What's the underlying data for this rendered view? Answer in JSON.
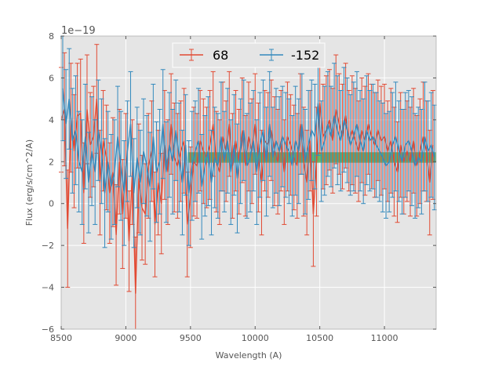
{
  "chart_data": {
    "type": "line",
    "style": "errorbar",
    "title": "",
    "xlabel": "Wavelength (A)",
    "ylabel": "Flux (erg/s/cm^2/A)",
    "y_offset_label": "1e−19",
    "xlim": [
      8500,
      11400
    ],
    "ylim": [
      -6,
      8
    ],
    "y_scale": 1e-19,
    "xticks": [
      8500,
      9000,
      9500,
      10000,
      10500,
      11000
    ],
    "xtick_labels": [
      "8500",
      "9000",
      "9500",
      "10000",
      "10500",
      "11000"
    ],
    "yticks": [
      -6,
      -4,
      -2,
      0,
      2,
      4,
      6,
      8
    ],
    "ytick_labels": [
      "−6",
      "−4",
      "−2",
      "0",
      "2",
      "4",
      "6",
      "8"
    ],
    "grid": true,
    "legend_position": "top-center",
    "legend": [
      "68",
      "-152"
    ],
    "band": {
      "x_start": 9480,
      "x_end": 11400,
      "y_low": 1.95,
      "y_high": 2.45,
      "color": "#2ca02c"
    },
    "series": [
      {
        "name": "68",
        "color": "#e24a33",
        "x": [
          8500,
          8525,
          8550,
          8575,
          8600,
          8625,
          8650,
          8675,
          8700,
          8725,
          8750,
          8775,
          8800,
          8825,
          8850,
          8875,
          8900,
          8925,
          8950,
          8975,
          9000,
          9025,
          9050,
          9075,
          9100,
          9125,
          9150,
          9175,
          9200,
          9225,
          9250,
          9275,
          9300,
          9325,
          9350,
          9375,
          9400,
          9425,
          9450,
          9475,
          9500,
          9525,
          9550,
          9575,
          9600,
          9625,
          9650,
          9675,
          9700,
          9725,
          9750,
          9775,
          9800,
          9825,
          9850,
          9875,
          9900,
          9925,
          9950,
          9975,
          10000,
          10025,
          10050,
          10075,
          10100,
          10125,
          10150,
          10175,
          10200,
          10225,
          10250,
          10275,
          10300,
          10325,
          10350,
          10375,
          10400,
          10425,
          10450,
          10475,
          10500,
          10525,
          10550,
          10575,
          10600,
          10625,
          10650,
          10675,
          10700,
          10725,
          10750,
          10775,
          10800,
          10825,
          10850,
          10875,
          10900,
          10925,
          10950,
          10975,
          11000,
          11025,
          11050,
          11075,
          11100,
          11125,
          11150,
          11175,
          11200,
          11225,
          11250,
          11275,
          11300,
          11325,
          11350,
          11375
        ],
        "y": [
          4.0,
          4.5,
          -1.2,
          4.1,
          2.5,
          4.2,
          4.3,
          0.5,
          4.5,
          2.8,
          3.2,
          5.0,
          1.0,
          3.0,
          2.2,
          0.5,
          1.5,
          -1.5,
          2.0,
          -0.5,
          1.8,
          -1.8,
          1.5,
          -4.3,
          1.2,
          -0.2,
          -0.5,
          1.8,
          2.5,
          -1.0,
          1.0,
          0.0,
          2.8,
          1.5,
          3.8,
          2.2,
          1.8,
          2.5,
          3.0,
          -1.0,
          0.3,
          2.0,
          1.8,
          3.0,
          2.5,
          2.2,
          2.8,
          3.8,
          2.0,
          1.5,
          3.2,
          2.5,
          3.8,
          1.8,
          3.0,
          2.0,
          3.5,
          1.8,
          3.2,
          2.5,
          3.8,
          2.2,
          1.0,
          3.0,
          2.8,
          3.5,
          2.5,
          2.0,
          3.0,
          1.5,
          3.2,
          2.8,
          2.2,
          1.8,
          3.8,
          2.0,
          1.0,
          3.0,
          -0.5,
          2.0,
          4.8,
          3.2,
          3.5,
          4.0,
          3.0,
          4.5,
          3.8,
          3.2,
          4.2,
          3.0,
          3.5,
          3.0,
          2.5,
          3.5,
          3.0,
          3.8,
          3.2,
          2.8,
          3.5,
          3.0,
          3.2,
          2.5,
          3.0,
          2.0,
          1.5,
          2.8,
          2.0,
          2.5,
          2.0,
          3.0,
          1.8,
          2.5,
          3.2,
          2.5,
          1.0,
          2.8
        ],
        "err": [
          2.5,
          2.7,
          2.8,
          2.6,
          2.7,
          2.5,
          2.6,
          2.4,
          2.6,
          2.5,
          2.4,
          2.6,
          2.5,
          2.4,
          2.5,
          2.4,
          2.6,
          2.4,
          2.5,
          2.6,
          2.5,
          2.4,
          2.5,
          2.7,
          2.6,
          2.5,
          2.4,
          2.5,
          2.4,
          2.5,
          2.5,
          2.4,
          2.6,
          2.5,
          2.4,
          2.6,
          2.5,
          2.4,
          2.5,
          2.5,
          2.4,
          2.6,
          2.5,
          2.4,
          2.5,
          2.4,
          2.6,
          2.5,
          2.4,
          2.5,
          2.6,
          2.4,
          2.5,
          2.5,
          2.4,
          2.5,
          2.5,
          2.4,
          2.6,
          2.5,
          2.4,
          2.6,
          2.5,
          2.4,
          2.5,
          2.4,
          2.6,
          2.5,
          2.4,
          2.5,
          2.6,
          2.4,
          2.5,
          2.5,
          2.4,
          2.6,
          2.5,
          2.4,
          2.5,
          2.6,
          2.4,
          2.5,
          2.6,
          2.4,
          2.5,
          2.6,
          2.4,
          2.5,
          2.5,
          2.4,
          2.6,
          2.5,
          2.4,
          2.5,
          2.6,
          2.4,
          2.5,
          2.5,
          2.4,
          2.6,
          2.5,
          2.4,
          2.5,
          2.6,
          2.4,
          2.5,
          2.5,
          2.4,
          2.6,
          2.5,
          2.4,
          2.5,
          2.6,
          2.4,
          2.5,
          2.6
        ]
      },
      {
        "name": "-152",
        "color": "#348abd",
        "x": [
          8512,
          8537,
          8562,
          8587,
          8612,
          8637,
          8662,
          8687,
          8712,
          8737,
          8762,
          8787,
          8812,
          8837,
          8862,
          8887,
          8912,
          8937,
          8962,
          8987,
          9012,
          9037,
          9062,
          9087,
          9112,
          9137,
          9162,
          9187,
          9212,
          9237,
          9262,
          9287,
          9312,
          9337,
          9362,
          9387,
          9412,
          9437,
          9462,
          9487,
          9512,
          9537,
          9562,
          9587,
          9612,
          9637,
          9662,
          9687,
          9712,
          9737,
          9762,
          9787,
          9812,
          9837,
          9862,
          9887,
          9912,
          9937,
          9962,
          9987,
          10012,
          10037,
          10062,
          10087,
          10112,
          10137,
          10162,
          10187,
          10212,
          10237,
          10262,
          10287,
          10312,
          10337,
          10362,
          10387,
          10412,
          10437,
          10462,
          10487,
          10512,
          10537,
          10562,
          10587,
          10612,
          10637,
          10662,
          10687,
          10712,
          10737,
          10762,
          10787,
          10812,
          10837,
          10862,
          10887,
          10912,
          10937,
          10962,
          10987,
          11012,
          11037,
          11062,
          11087,
          11112,
          11137,
          11162,
          11187,
          11212,
          11237,
          11262,
          11287,
          11312,
          11337,
          11362,
          11387
        ],
        "y": [
          5.5,
          3.8,
          5.0,
          3.0,
          3.5,
          2.0,
          1.5,
          3.2,
          1.0,
          2.5,
          1.5,
          3.5,
          2.5,
          0.5,
          2.0,
          0.8,
          1.5,
          3.2,
          1.8,
          0.5,
          2.5,
          3.8,
          0.5,
          2.2,
          1.0,
          2.5,
          1.8,
          0.8,
          3.2,
          1.5,
          2.0,
          3.8,
          1.5,
          2.8,
          2.0,
          3.5,
          2.2,
          1.0,
          2.8,
          0.5,
          1.8,
          2.5,
          3.0,
          0.8,
          1.8,
          2.5,
          1.0,
          2.2,
          1.8,
          3.2,
          2.0,
          3.0,
          1.5,
          2.8,
          1.2,
          2.5,
          3.5,
          1.8,
          2.2,
          3.0,
          1.5,
          2.8,
          3.5,
          2.0,
          3.8,
          2.2,
          3.0,
          2.5,
          3.2,
          2.8,
          2.5,
          1.8,
          3.0,
          2.5,
          3.8,
          2.0,
          2.8,
          3.5,
          3.2,
          4.8,
          2.5,
          3.0,
          3.8,
          3.2,
          4.2,
          3.5,
          3.0,
          4.0,
          3.5,
          2.8,
          3.2,
          3.8,
          3.0,
          2.5,
          3.5,
          3.0,
          3.2,
          2.8,
          2.5,
          2.2,
          1.8,
          2.0,
          2.8,
          3.2,
          2.5,
          2.0,
          2.8,
          3.0,
          2.5,
          1.8,
          2.2,
          2.0,
          3.2,
          2.5,
          2.8,
          2.2
        ],
        "err": [
          2.5,
          2.6,
          2.4,
          2.5,
          2.6,
          2.4,
          2.5,
          2.5,
          2.4,
          2.6,
          2.5,
          2.4,
          2.5,
          2.6,
          2.4,
          2.5,
          2.5,
          2.4,
          2.6,
          2.5,
          2.4,
          2.5,
          2.6,
          2.4,
          2.5,
          2.5,
          2.4,
          2.6,
          2.5,
          2.4,
          2.5,
          2.6,
          2.4,
          2.5,
          2.5,
          2.4,
          2.6,
          2.5,
          2.4,
          2.5,
          2.6,
          2.4,
          2.5,
          2.5,
          2.4,
          2.6,
          2.5,
          2.4,
          2.5,
          2.6,
          2.4,
          2.5,
          2.5,
          2.4,
          2.6,
          2.5,
          2.4,
          2.5,
          2.6,
          2.4,
          2.5,
          2.5,
          2.4,
          2.6,
          2.5,
          2.4,
          2.5,
          2.6,
          2.4,
          2.5,
          2.5,
          2.4,
          2.6,
          2.5,
          2.4,
          2.5,
          2.6,
          2.4,
          2.5,
          2.5,
          2.4,
          2.6,
          2.5,
          2.4,
          2.5,
          2.6,
          2.4,
          2.5,
          2.5,
          2.4,
          2.6,
          2.5,
          2.4,
          2.5,
          2.6,
          2.4,
          2.5,
          2.5,
          2.4,
          2.6,
          2.5,
          2.4,
          2.5,
          2.6,
          2.4,
          2.5,
          2.5,
          2.4,
          2.6,
          2.5,
          2.4,
          2.5,
          2.6,
          2.4,
          2.5,
          2.5
        ]
      }
    ]
  }
}
